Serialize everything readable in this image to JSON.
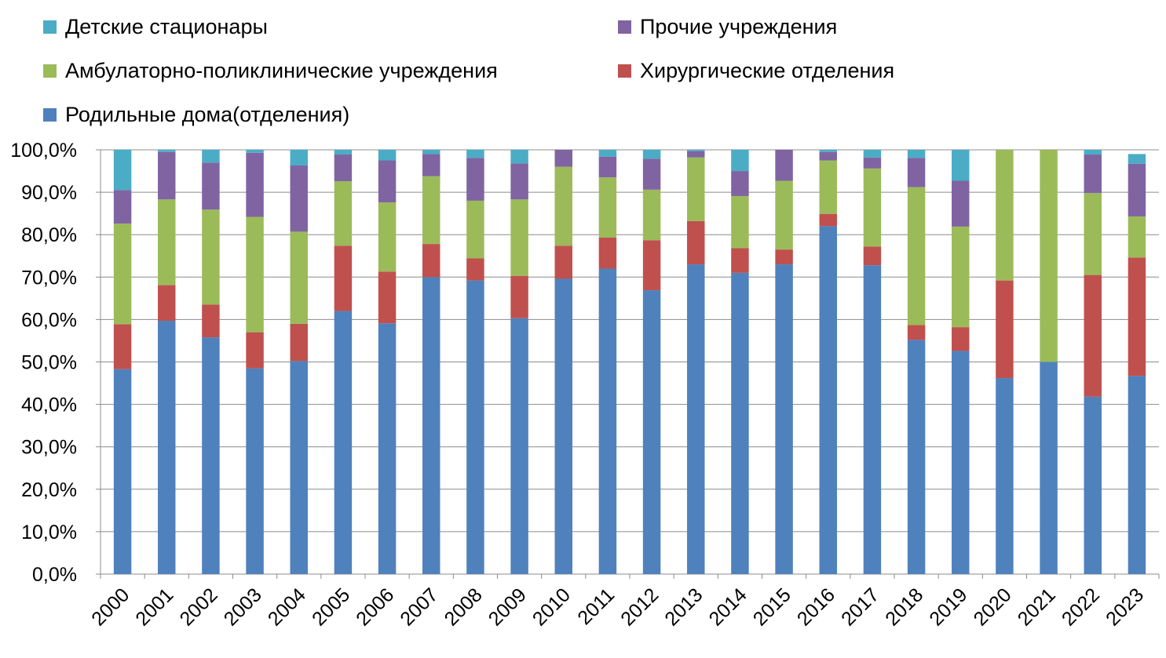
{
  "chart_data": {
    "type": "bar",
    "stacked": true,
    "categories": [
      "2000",
      "2001",
      "2002",
      "2003",
      "2004",
      "2005",
      "2006",
      "2007",
      "2008",
      "2009",
      "2010",
      "2011",
      "2012",
      "2013",
      "2014",
      "2015",
      "2016",
      "2017",
      "2018",
      "2019",
      "2020",
      "2021",
      "2022",
      "2023"
    ],
    "series": [
      {
        "name": "Родильные дома(отделения)",
        "color": "#4f81bd",
        "values": [
          48.3,
          59.7,
          55.8,
          48.5,
          50.2,
          62.0,
          59.1,
          70.0,
          69.2,
          60.3,
          69.6,
          72.0,
          66.9,
          73.0,
          71.0,
          73.0,
          82.0,
          72.8,
          55.2,
          52.6,
          46.2,
          50.0,
          41.8,
          46.7
        ]
      },
      {
        "name": "Хирургические отделения",
        "color": "#c0504d",
        "values": [
          10.6,
          8.4,
          7.7,
          8.5,
          8.8,
          15.4,
          12.2,
          7.8,
          5.2,
          10.0,
          7.8,
          7.3,
          11.8,
          10.2,
          5.8,
          3.5,
          2.9,
          4.4,
          3.5,
          5.6,
          23.0,
          0,
          28.7,
          27.9
        ]
      },
      {
        "name": "Амбулаторно-поликлинические учреждения",
        "color": "#9bbb59",
        "values": [
          23.7,
          20.2,
          22.4,
          27.2,
          21.7,
          15.2,
          16.3,
          16.0,
          13.6,
          18.0,
          18.6,
          14.2,
          11.9,
          15.0,
          12.3,
          16.2,
          12.6,
          18.4,
          32.5,
          23.7,
          30.8,
          50.0,
          19.3,
          9.7
        ]
      },
      {
        "name": "Прочие учреждения",
        "color": "#8064a2",
        "values": [
          7.9,
          11.2,
          11.1,
          15.1,
          15.6,
          6.3,
          9.9,
          5.2,
          10.1,
          8.5,
          4.0,
          4.9,
          7.3,
          1.5,
          5.9,
          7.3,
          2.0,
          2.6,
          6.9,
          10.8,
          0,
          0,
          9.1,
          12.4
        ]
      },
      {
        "name": "Детские стационары",
        "color": "#4bacc6",
        "values": [
          9.5,
          0.5,
          3.0,
          0.7,
          3.7,
          1.1,
          2.5,
          1.0,
          1.9,
          3.2,
          0,
          1.6,
          2.1,
          0.3,
          5.0,
          0,
          0.5,
          1.8,
          1.9,
          7.3,
          0,
          0,
          1.1,
          2.3
        ]
      }
    ],
    "y_ticks": [
      "0,0%",
      "10,0%",
      "20,0%",
      "30,0%",
      "40,0%",
      "50,0%",
      "60,0%",
      "70,0%",
      "80,0%",
      "90,0%",
      "100,0%"
    ],
    "ylim": [
      0,
      100
    ],
    "grid": true,
    "legend_position": "top",
    "title": "",
    "xlabel": "",
    "ylabel": ""
  }
}
